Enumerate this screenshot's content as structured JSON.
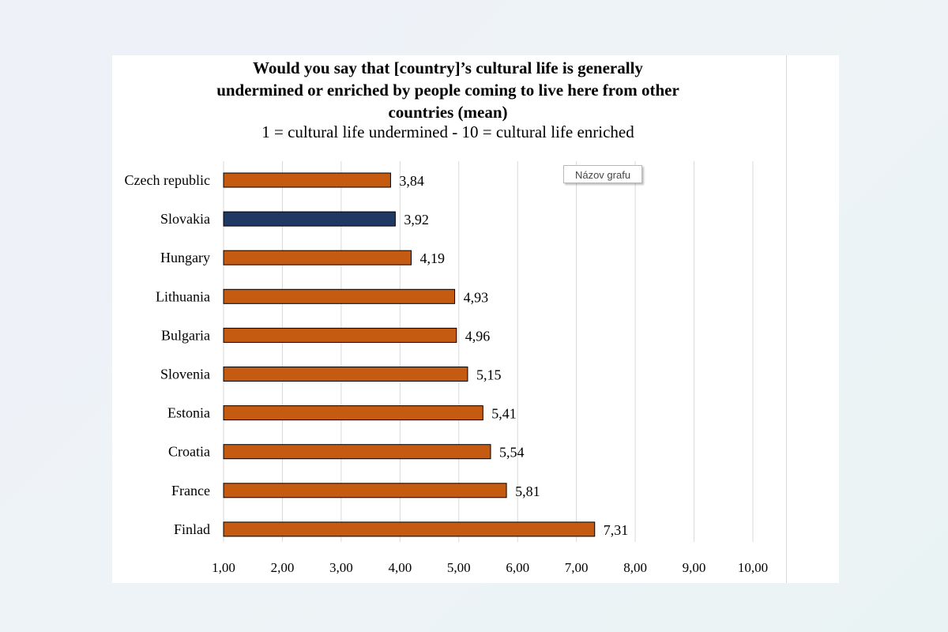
{
  "chart_data": {
    "type": "bar",
    "orientation": "horizontal",
    "title_lines": [
      "Would you say that [country]’s cultural life is generally",
      "undermined or enriched by people coming to live here from other",
      "countries (mean)"
    ],
    "subtitle": "1 = cultural life undermined - 10 = cultural life enriched",
    "categories": [
      "Czech republic",
      "Slovakia",
      "Hungary",
      "Lithuania",
      "Bulgaria",
      "Slovenia",
      "Estonia",
      "Croatia",
      "France",
      "Finlad"
    ],
    "values": [
      3.84,
      3.92,
      4.19,
      4.93,
      4.96,
      5.15,
      5.41,
      5.54,
      5.81,
      7.31
    ],
    "value_labels": [
      "3,84",
      "3,92",
      "4,19",
      "4,93",
      "4,96",
      "5,15",
      "5,41",
      "5,54",
      "5,81",
      "7,31"
    ],
    "highlight_category": "Slovakia",
    "xlim": [
      1,
      10
    ],
    "xticks": [
      1,
      2,
      3,
      4,
      5,
      6,
      7,
      8,
      9,
      10
    ],
    "xtick_labels": [
      "1,00",
      "2,00",
      "3,00",
      "4,00",
      "5,00",
      "6,00",
      "7,00",
      "8,00",
      "9,00",
      "10,00"
    ],
    "xlabel": "",
    "ylabel": "",
    "grid": "vertical",
    "legend": "none"
  },
  "colors": {
    "bar": "#c55a11",
    "highlight": "#1f3864",
    "bar_border": "#000000",
    "grid": "#d9d9d9"
  },
  "tooltip": {
    "text": "Názov grafu"
  }
}
